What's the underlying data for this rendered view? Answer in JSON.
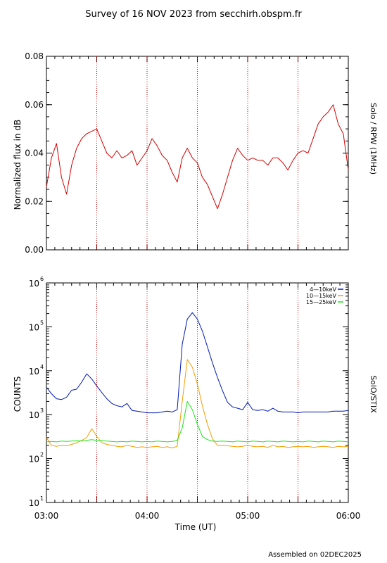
{
  "title": "Survey of 16 NOV 2023 from secchirh.obspm.fr",
  "footer": "Assembled on 02DEC2025",
  "x_axis": {
    "label": "Time (UT)",
    "range_hours": [
      3.0,
      6.0
    ],
    "tick_labels": [
      "03:00",
      "04:00",
      "05:00",
      "06:00"
    ],
    "tick_hours": [
      3.0,
      4.0,
      5.0,
      6.0
    ],
    "dotted_marker_hours": [
      3.5,
      4.0,
      4.5,
      5.0,
      5.5
    ]
  },
  "chart_data": [
    {
      "type": "line",
      "instrument_label": "Solo / RPW (1MHz)",
      "ylabel": "Normalized flux in dB",
      "ylim": [
        0.0,
        0.08
      ],
      "yticks": [
        0.0,
        0.02,
        0.04,
        0.06,
        0.08
      ],
      "ytick_labels": [
        "0.00",
        "0.02",
        "0.04",
        "0.06",
        "0.08"
      ],
      "series": [
        {
          "color": "#d40000",
          "x": [
            3.0,
            3.05,
            3.1,
            3.15,
            3.2,
            3.25,
            3.3,
            3.35,
            3.4,
            3.45,
            3.5,
            3.55,
            3.6,
            3.65,
            3.7,
            3.75,
            3.8,
            3.85,
            3.9,
            3.95,
            4.0,
            4.05,
            4.1,
            4.15,
            4.2,
            4.25,
            4.3,
            4.35,
            4.4,
            4.45,
            4.5,
            4.55,
            4.6,
            4.65,
            4.7,
            4.75,
            4.8,
            4.85,
            4.9,
            4.95,
            5.0,
            5.05,
            5.1,
            5.15,
            5.2,
            5.25,
            5.3,
            5.35,
            5.4,
            5.45,
            5.5,
            5.55,
            5.6,
            5.65,
            5.7,
            5.75,
            5.8,
            5.85,
            5.9,
            5.95,
            6.0
          ],
          "y": [
            0.026,
            0.038,
            0.044,
            0.03,
            0.023,
            0.035,
            0.042,
            0.046,
            0.048,
            0.049,
            0.05,
            0.045,
            0.04,
            0.038,
            0.041,
            0.038,
            0.039,
            0.041,
            0.035,
            0.038,
            0.041,
            0.046,
            0.043,
            0.039,
            0.037,
            0.032,
            0.028,
            0.038,
            0.042,
            0.038,
            0.036,
            0.03,
            0.027,
            0.022,
            0.017,
            0.023,
            0.03,
            0.037,
            0.042,
            0.039,
            0.037,
            0.038,
            0.037,
            0.037,
            0.035,
            0.038,
            0.038,
            0.036,
            0.033,
            0.037,
            0.04,
            0.041,
            0.04,
            0.046,
            0.052,
            0.055,
            0.057,
            0.06,
            0.052,
            0.048,
            0.033
          ]
        }
      ]
    },
    {
      "type": "line",
      "instrument_label": "SolO/STIX",
      "ylabel": "COUNTS",
      "yscale": "log",
      "ylim": [
        10,
        1000000
      ],
      "ytick_labels": [
        {
          "base": "10",
          "exp": "1"
        },
        {
          "base": "10",
          "exp": "2"
        },
        {
          "base": "10",
          "exp": "3"
        },
        {
          "base": "10",
          "exp": "4"
        },
        {
          "base": "10",
          "exp": "5"
        },
        {
          "base": "10",
          "exp": "6"
        }
      ],
      "legend_position": "top-right",
      "series": [
        {
          "name": "4—10keV",
          "color": "#0018b4",
          "x": [
            3.0,
            3.05,
            3.1,
            3.15,
            3.2,
            3.25,
            3.3,
            3.35,
            3.4,
            3.45,
            3.5,
            3.55,
            3.6,
            3.65,
            3.7,
            3.75,
            3.8,
            3.85,
            3.9,
            3.95,
            4.0,
            4.05,
            4.1,
            4.15,
            4.2,
            4.25,
            4.3,
            4.35,
            4.4,
            4.45,
            4.5,
            4.55,
            4.6,
            4.65,
            4.7,
            4.75,
            4.8,
            4.85,
            4.9,
            4.95,
            5.0,
            5.05,
            5.1,
            5.15,
            5.2,
            5.25,
            5.3,
            5.35,
            5.4,
            5.45,
            5.5,
            5.55,
            5.6,
            5.65,
            5.7,
            5.75,
            5.8,
            5.85,
            5.9,
            5.95,
            6.0
          ],
          "y": [
            4200,
            3000,
            2300,
            2200,
            2500,
            3600,
            3800,
            5500,
            8500,
            6500,
            4500,
            3200,
            2300,
            1800,
            1600,
            1500,
            1800,
            1250,
            1200,
            1150,
            1100,
            1100,
            1100,
            1150,
            1200,
            1150,
            1300,
            40000,
            150000,
            210000,
            150000,
            80000,
            35000,
            15000,
            7000,
            3500,
            1900,
            1500,
            1400,
            1300,
            1900,
            1300,
            1250,
            1300,
            1200,
            1400,
            1200,
            1150,
            1150,
            1150,
            1100,
            1150,
            1150,
            1150,
            1150,
            1150,
            1150,
            1200,
            1200,
            1200,
            1250
          ]
        },
        {
          "name": "10—15keV",
          "color": "#f59c00",
          "x": [
            3.0,
            3.05,
            3.1,
            3.15,
            3.2,
            3.25,
            3.3,
            3.35,
            3.4,
            3.45,
            3.5,
            3.55,
            3.6,
            3.65,
            3.7,
            3.75,
            3.8,
            3.85,
            3.9,
            3.95,
            4.0,
            4.05,
            4.1,
            4.15,
            4.2,
            4.25,
            4.3,
            4.35,
            4.4,
            4.45,
            4.5,
            4.55,
            4.6,
            4.65,
            4.7,
            4.75,
            4.8,
            4.85,
            4.9,
            4.95,
            5.0,
            5.05,
            5.1,
            5.15,
            5.2,
            5.25,
            5.3,
            5.35,
            5.4,
            5.45,
            5.5,
            5.55,
            5.6,
            5.65,
            5.7,
            5.75,
            5.8,
            5.85,
            5.9,
            5.95,
            6.0
          ],
          "y": [
            300,
            200,
            190,
            200,
            195,
            210,
            230,
            260,
            300,
            480,
            320,
            230,
            210,
            200,
            190,
            185,
            200,
            190,
            180,
            185,
            180,
            185,
            190,
            180,
            185,
            175,
            190,
            2000,
            18000,
            12000,
            5000,
            1600,
            600,
            280,
            200,
            200,
            195,
            190,
            185,
            190,
            200,
            190,
            185,
            190,
            180,
            200,
            185,
            190,
            180,
            185,
            190,
            185,
            190,
            180,
            185,
            190,
            185,
            180,
            190,
            185,
            190
          ]
        },
        {
          "name": "15—25keV",
          "color": "#19e619",
          "x": [
            3.0,
            3.05,
            3.1,
            3.15,
            3.2,
            3.25,
            3.3,
            3.35,
            3.4,
            3.45,
            3.5,
            3.55,
            3.6,
            3.65,
            3.7,
            3.75,
            3.8,
            3.85,
            3.9,
            3.95,
            4.0,
            4.05,
            4.1,
            4.15,
            4.2,
            4.25,
            4.3,
            4.35,
            4.4,
            4.45,
            4.5,
            4.55,
            4.6,
            4.65,
            4.7,
            4.75,
            4.8,
            4.85,
            4.9,
            4.95,
            5.0,
            5.05,
            5.1,
            5.15,
            5.2,
            5.25,
            5.3,
            5.35,
            5.4,
            5.45,
            5.5,
            5.55,
            5.6,
            5.65,
            5.7,
            5.75,
            5.8,
            5.85,
            5.9,
            5.95,
            6.0
          ],
          "y": [
            240,
            245,
            240,
            250,
            245,
            250,
            255,
            250,
            260,
            270,
            260,
            255,
            250,
            245,
            240,
            245,
            240,
            250,
            245,
            240,
            245,
            240,
            250,
            245,
            240,
            245,
            260,
            500,
            2000,
            1300,
            600,
            320,
            270,
            250,
            245,
            250,
            245,
            240,
            250,
            245,
            240,
            250,
            245,
            240,
            250,
            245,
            240,
            250,
            245,
            240,
            245,
            240,
            250,
            245,
            240,
            250,
            245,
            240,
            250,
            245,
            240
          ]
        }
      ]
    }
  ]
}
